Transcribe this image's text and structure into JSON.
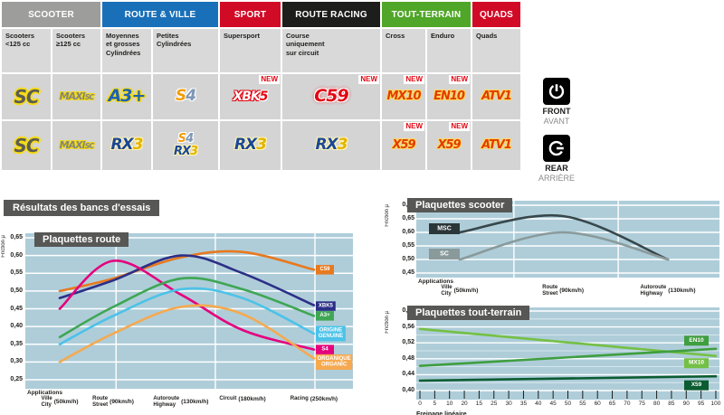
{
  "table": {
    "new_label": "NEW",
    "categories": [
      {
        "label": "SCOOTER",
        "color": "#9d9d9c",
        "span": 2
      },
      {
        "label": "ROUTE & VILLE",
        "color": "#1a70b8",
        "span": 2
      },
      {
        "label": "SPORT",
        "color": "#d10a26",
        "span": 1
      },
      {
        "label": "ROUTE RACING",
        "color": "#1d1d1b",
        "span": 1
      },
      {
        "label": "TOUT-TERRAIN",
        "color": "#50a628",
        "span": 2
      },
      {
        "label": "QUADS",
        "color": "#d10a26",
        "span": 1
      }
    ],
    "subheaders": [
      "Scooters\n<125 cc",
      "Scooters\n≥125 cc",
      "Moyennes\net grosses\nCylindrées",
      "Petites\nCylindrées",
      "Supersport",
      "Course\nuniquement\nsur circuit",
      "Cross",
      "Enduro",
      "Quads"
    ],
    "rows": {
      "front": {
        "side_en": "FRONT",
        "side_fr": "AVANT",
        "cells": [
          {
            "name": "SC",
            "style": "sc"
          },
          {
            "name": "MAXI-SC",
            "style": "maxi",
            "parts": [
              {
                "text": "MAXI"
              },
              {
                "text": "SC",
                "small": true
              }
            ]
          },
          {
            "name": "A3+",
            "style": "a3"
          },
          {
            "name": "S4",
            "style": "s4",
            "parts": [
              {
                "text": "S",
                "cls": "s"
              },
              {
                "text": "4",
                "cls": "four"
              }
            ]
          },
          {
            "name": "XBK5",
            "style": "xbk",
            "new": true,
            "parts": [
              {
                "text": "XBK",
                "cls": "xbk-x"
              },
              {
                "text": "5",
                "cls": "xbk-5"
              }
            ]
          },
          {
            "name": "C59",
            "style": "c59",
            "new": true
          },
          {
            "name": "MX10",
            "style": "offroad",
            "new": true
          },
          {
            "name": "EN10",
            "style": "offroad",
            "new": true
          },
          {
            "name": "ATV1",
            "style": "offroad"
          }
        ]
      },
      "rear": {
        "side_en": "REAR",
        "side_fr": "ARRIÈRE",
        "cells": [
          {
            "name": "SC",
            "style": "sc"
          },
          {
            "name": "MAXI-SC",
            "style": "maxi",
            "parts": [
              {
                "text": "MAXI"
              },
              {
                "text": "SC",
                "small": true
              }
            ]
          },
          {
            "name": "RX3",
            "style": "rx3",
            "parts": [
              {
                "text": "RX",
                "cls": "rx"
              },
              {
                "text": "3",
                "cls": "three"
              }
            ]
          },
          {
            "stack": [
              {
                "name": "S4",
                "style": "s4 sm",
                "parts": [
                  {
                    "text": "S",
                    "cls": "s"
                  },
                  {
                    "text": "4",
                    "cls": "four"
                  }
                ]
              },
              {
                "name": "RX3",
                "style": "rx3 sm",
                "parts": [
                  {
                    "text": "RX",
                    "cls": "rx"
                  },
                  {
                    "text": "3",
                    "cls": "three"
                  }
                ]
              }
            ]
          },
          {
            "name": "RX3",
            "style": "rx3",
            "parts": [
              {
                "text": "RX",
                "cls": "rx"
              },
              {
                "text": "3",
                "cls": "three"
              }
            ]
          },
          {
            "name": "RX3",
            "style": "rx3",
            "parts": [
              {
                "text": "RX",
                "cls": "rx"
              },
              {
                "text": "3",
                "cls": "three"
              }
            ]
          },
          {
            "name": "X59",
            "style": "offroad",
            "new": true
          },
          {
            "name": "X59",
            "style": "offroad",
            "new": true
          },
          {
            "name": "ATV1",
            "style": "offroad"
          }
        ]
      }
    }
  },
  "section": {
    "results_title": "Résultats des bancs d'essais"
  },
  "chart_data": [
    {
      "id": "route",
      "type": "line",
      "title": "Plaquettes route",
      "ylabel": "Friction µ",
      "x_caption": "Applications",
      "ylim": [
        0.25,
        0.65
      ],
      "ystep": 0.05,
      "plot_bg": "#aecdd9",
      "grid": "on",
      "x_categories": [
        {
          "fr": "Ville",
          "en": "City",
          "speed": "(50km/h)"
        },
        {
          "fr": "Route",
          "en": "Street",
          "speed": "(90km/h)"
        },
        {
          "fr": "Autoroute",
          "en": "Highway",
          "speed": "(130km/h)"
        },
        {
          "fr": "Circuit",
          "en": "",
          "speed": "(180km/h)"
        },
        {
          "fr": "Racing",
          "en": "",
          "speed": "(250km/h)"
        }
      ],
      "series": [
        {
          "name": "C59",
          "color": "#e8791e",
          "badge": [
            "C59"
          ],
          "values": [
            0.5,
            0.535,
            0.595,
            0.61,
            0.56
          ]
        },
        {
          "name": "XBK5",
          "color": "#2c2f87",
          "badge": [
            "XBK5"
          ],
          "values": [
            0.48,
            0.53,
            0.6,
            0.55,
            0.46
          ]
        },
        {
          "name": "S4",
          "color": "#e5007d",
          "badge": [
            "S4"
          ],
          "values": [
            0.45,
            0.585,
            0.49,
            0.39,
            0.335
          ]
        },
        {
          "name": "A3+",
          "color": "#3fa654",
          "badge": [
            "A3+"
          ],
          "values": [
            0.37,
            0.455,
            0.535,
            0.505,
            0.43
          ]
        },
        {
          "name": "ORIGINE",
          "color": "#4cc2e8",
          "badge": [
            "ORIGINE",
            "GENUINE"
          ],
          "values": [
            0.35,
            0.43,
            0.505,
            0.48,
            0.38
          ]
        },
        {
          "name": "ORGANIQUE",
          "color": "#f6a94f",
          "badge": [
            "ORGANIQUE",
            "ORGANIC"
          ],
          "values": [
            0.3,
            0.38,
            0.455,
            0.435,
            0.31
          ]
        }
      ]
    },
    {
      "id": "scooter",
      "type": "line",
      "title": "Plaquettes scooter",
      "ylabel": "Friction µ",
      "x_caption": "Applications",
      "ylim": [
        0.45,
        0.7
      ],
      "ystep": 0.05,
      "plot_bg": "#aecdd9",
      "grid": "on",
      "x_categories": [
        {
          "fr": "Ville",
          "en": "City",
          "speed": "(50km/h)"
        },
        {
          "fr": "Route",
          "en": "Street",
          "speed": "(90km/h)"
        },
        {
          "fr": "Autoroute",
          "en": "Highway",
          "speed": "(130km/h)"
        }
      ],
      "series": [
        {
          "name": "MSC",
          "color": "#37474b",
          "badge_bg": "#2b3638",
          "badge": [
            "MSC"
          ],
          "values": [
            0.6,
            0.66,
            0.5
          ]
        },
        {
          "name": "SC",
          "color": "#8a9a9b",
          "badge_bg": "#8a9a9b",
          "badge": [
            "SC"
          ],
          "values": [
            0.5,
            0.6,
            0.5
          ]
        }
      ]
    },
    {
      "id": "tt",
      "type": "line",
      "title": "Plaquettes tout-terrain",
      "ylabel": "Friction µ",
      "xlabel": "Freinage linéaire",
      "ylim": [
        0.4,
        0.6
      ],
      "ystep": 0.04,
      "ystep_minor": 0.02,
      "plot_bg": "#aecdd9",
      "grid": "on",
      "x_ticks": [
        "0",
        "5",
        "10",
        "20",
        "15",
        "25",
        "30",
        "35",
        "40",
        "45",
        "50",
        "55",
        "60",
        "65",
        "70",
        "75",
        "80",
        "85",
        "90",
        "95",
        "100"
      ],
      "series": [
        {
          "name": "MX10",
          "color": "#74c044",
          "badge": [
            "MX10"
          ],
          "values": [
            0.555,
            0.487
          ]
        },
        {
          "name": "EN10",
          "color": "#3f9e3f",
          "badge": [
            "EN10"
          ],
          "values": [
            0.462,
            0.505
          ]
        },
        {
          "name": "X59",
          "color": "#0b5c31",
          "badge": [
            "X59"
          ],
          "values": [
            0.425,
            0.436
          ]
        }
      ]
    }
  ]
}
